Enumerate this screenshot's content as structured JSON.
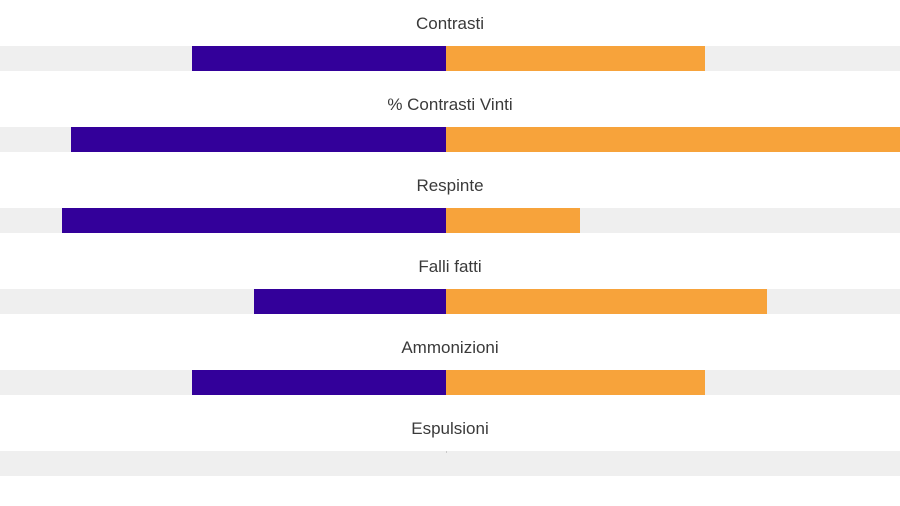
{
  "colors": {
    "home": "#33009a",
    "away": "#f7a33b",
    "track": "#efefef"
  },
  "chart_data": {
    "type": "bar",
    "orientation": "diverging-horizontal",
    "grid": false,
    "categories": [
      "Contrasti",
      "% Contrasti Vinti",
      "Respinte",
      "Falli fatti",
      "Ammonizioni",
      "Espulsioni"
    ],
    "series": [
      {
        "values": [
          0.57,
          0.84,
          0.86,
          0.43,
          0.57,
          0
        ]
      },
      {
        "values": [
          0.58,
          1.02,
          0.3,
          0.72,
          0.58,
          0
        ]
      }
    ],
    "value_scale": "relative to half-width",
    "xlim": [
      -1,
      1
    ]
  }
}
